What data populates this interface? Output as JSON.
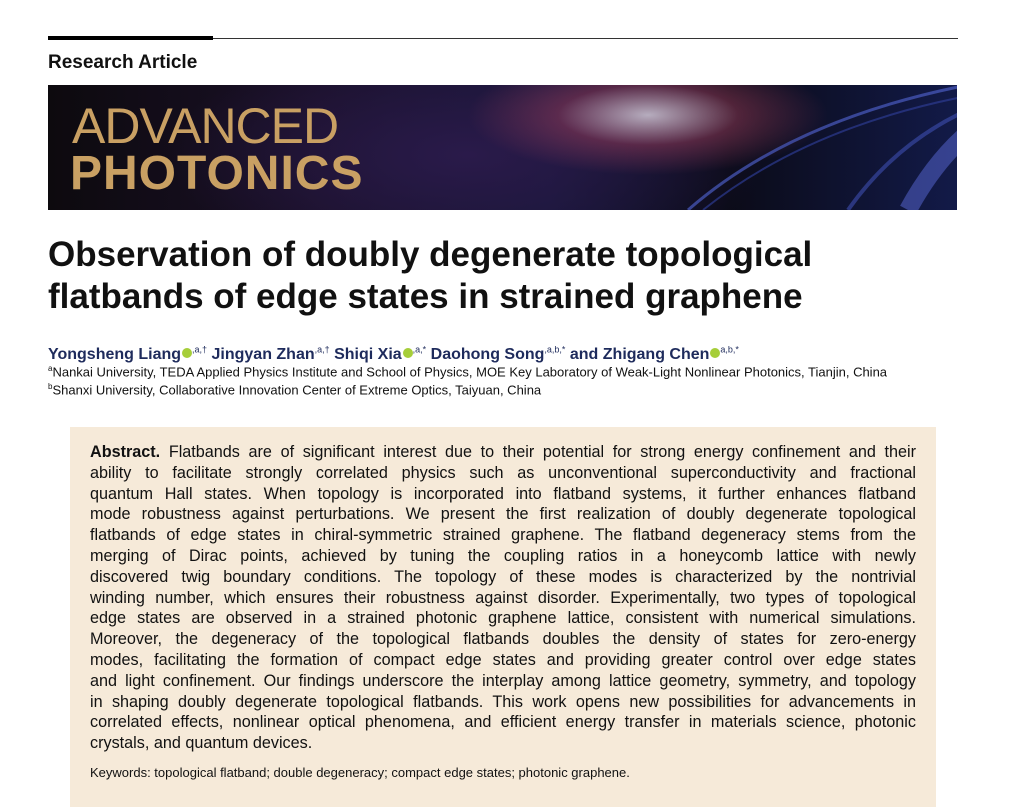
{
  "section": "Research Article",
  "journal": {
    "line1": "ADVANCED",
    "line2": "PHOTONICS"
  },
  "title": {
    "line1": "Observation of doubly degenerate topological",
    "line2": "flatbands of edge states in strained graphene"
  },
  "authors": [
    {
      "name": "Yongsheng Liang",
      "orcid": true,
      "sup": ",a,†"
    },
    {
      "name": "Jingyan Zhan",
      "orcid": false,
      "sup": ",a,†"
    },
    {
      "name": "Shiqi Xia",
      "orcid": true,
      "sup": ",a,*"
    },
    {
      "name": "Daohong Song",
      "orcid": false,
      "sup": ",a,b,*"
    },
    {
      "name": "and Zhigang Chen",
      "orcid": true,
      "sup": "a,b,*"
    }
  ],
  "affiliations": [
    {
      "mark": "a",
      "text": "Nankai University, TEDA Applied Physics Institute and School of Physics, MOE Key Laboratory of Weak-Light Nonlinear Photonics, Tianjin, China"
    },
    {
      "mark": "b",
      "text": "Shanxi University, Collaborative Innovation Center of Extreme Optics, Taiyuan, China"
    }
  ],
  "abstract": {
    "label": "Abstract.",
    "lines": [
      "Flatbands are of significant interest due to their potential for strong energy confinement and their",
      "ability to facilitate strongly correlated physics such as unconventional superconductivity and fractional",
      "quantum Hall states. When topology is incorporated into flatband systems, it further enhances flatband",
      "mode robustness against perturbations. We present the first realization of doubly degenerate topological",
      "flatbands of edge states in chiral-symmetric strained graphene. The flatband degeneracy stems from the",
      "merging of Dirac points, achieved by tuning the coupling ratios in a honeycomb lattice with newly",
      "discovered twig boundary conditions. The topology of these modes is characterized by the nontrivial",
      "winding number, which ensures their robustness against disorder. Experimentally, two types of topological",
      "edge states are observed in a strained photonic graphene lattice, consistent with numerical simulations.",
      "Moreover, the degeneracy of the topological flatbands doubles the density of states for zero-energy",
      "modes, facilitating the formation of compact edge states and providing greater control over edge states",
      "and light confinement. Our findings underscore the interplay among lattice geometry, symmetry, and topology",
      "in shaping doubly degenerate topological flatbands. This work opens new possibilities for advancements in",
      "correlated effects, nonlinear optical phenomena, and efficient energy transfer in materials science, photonic",
      "crystals, and quantum devices."
    ]
  },
  "keywords": "Keywords: topological flatband; double degeneracy; compact edge states; photonic graphene."
}
